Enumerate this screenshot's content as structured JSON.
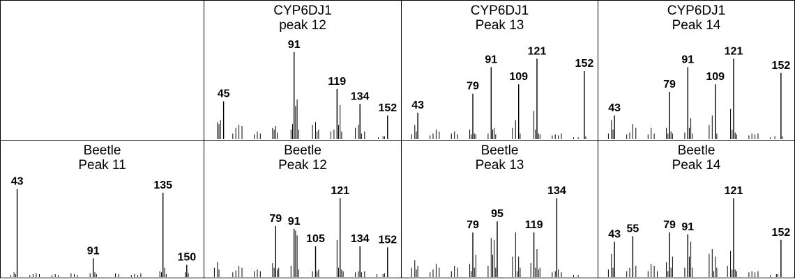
{
  "chart_data": [
    {
      "type": "bar",
      "title_line1": "CYP6DJ1",
      "title_line2": "peak 12",
      "series_color": "#000000",
      "labeled_peaks": [
        {
          "x": 45,
          "y": 0.4
        },
        {
          "x": 91,
          "y": 0.92
        },
        {
          "x": 119,
          "y": 0.53
        },
        {
          "x": 134,
          "y": 0.37
        },
        {
          "x": 152,
          "y": 0.25
        }
      ],
      "minor_peaks": [
        [
          41,
          0.18
        ],
        [
          42,
          0.16
        ],
        [
          43,
          0.2
        ],
        [
          51,
          0.06
        ],
        [
          53,
          0.12
        ],
        [
          55,
          0.15
        ],
        [
          57,
          0.14
        ],
        [
          65,
          0.05
        ],
        [
          67,
          0.08
        ],
        [
          69,
          0.06
        ],
        [
          77,
          0.12
        ],
        [
          78,
          0.1
        ],
        [
          79,
          0.14
        ],
        [
          80,
          0.07
        ],
        [
          89,
          0.1
        ],
        [
          90,
          0.16
        ],
        [
          92,
          0.35
        ],
        [
          93,
          0.42
        ],
        [
          94,
          0.1
        ],
        [
          103,
          0.15
        ],
        [
          105,
          0.18
        ],
        [
          106,
          0.08
        ],
        [
          107,
          0.1
        ],
        [
          115,
          0.08
        ],
        [
          117,
          0.1
        ],
        [
          120,
          0.15
        ],
        [
          121,
          0.36
        ],
        [
          122,
          0.08
        ],
        [
          131,
          0.12
        ],
        [
          133,
          0.15
        ],
        [
          135,
          0.06
        ],
        [
          137,
          0.08
        ],
        [
          146,
          0.02
        ],
        [
          149,
          0.03
        ],
        [
          150,
          0.03
        ]
      ]
    },
    {
      "type": "bar",
      "title_line1": "CYP6DJ1",
      "title_line2": "Peak 13",
      "series_color": "#000000",
      "labeled_peaks": [
        {
          "x": 43,
          "y": 0.28
        },
        {
          "x": 79,
          "y": 0.48
        },
        {
          "x": 91,
          "y": 0.76
        },
        {
          "x": 109,
          "y": 0.58
        },
        {
          "x": 121,
          "y": 0.85
        },
        {
          "x": 152,
          "y": 0.72
        }
      ],
      "minor_peaks": [
        [
          39,
          0.05
        ],
        [
          41,
          0.15
        ],
        [
          42,
          0.08
        ],
        [
          51,
          0.04
        ],
        [
          53,
          0.06
        ],
        [
          55,
          0.1
        ],
        [
          57,
          0.08
        ],
        [
          65,
          0.06
        ],
        [
          67,
          0.08
        ],
        [
          69,
          0.05
        ],
        [
          77,
          0.1
        ],
        [
          78,
          0.05
        ],
        [
          80,
          0.06
        ],
        [
          81,
          0.05
        ],
        [
          89,
          0.06
        ],
        [
          92,
          0.1
        ],
        [
          93,
          0.12
        ],
        [
          94,
          0.05
        ],
        [
          105,
          0.12
        ],
        [
          107,
          0.2
        ],
        [
          110,
          0.06
        ],
        [
          119,
          0.3
        ],
        [
          120,
          0.1
        ],
        [
          122,
          0.06
        ],
        [
          123,
          0.05
        ],
        [
          131,
          0.04
        ],
        [
          133,
          0.05
        ],
        [
          135,
          0.04
        ],
        [
          137,
          0.06
        ],
        [
          145,
          0.02
        ],
        [
          148,
          0.02
        ],
        [
          153,
          0.03
        ]
      ]
    },
    {
      "type": "bar",
      "title_line1": "CYP6DJ1",
      "title_line2": "Peak 14",
      "series_color": "#000000",
      "labeled_peaks": [
        {
          "x": 43,
          "y": 0.25
        },
        {
          "x": 79,
          "y": 0.5
        },
        {
          "x": 91,
          "y": 0.76
        },
        {
          "x": 109,
          "y": 0.58
        },
        {
          "x": 121,
          "y": 0.85
        },
        {
          "x": 152,
          "y": 0.7
        }
      ],
      "minor_peaks": [
        [
          39,
          0.06
        ],
        [
          41,
          0.2
        ],
        [
          42,
          0.1
        ],
        [
          51,
          0.05
        ],
        [
          53,
          0.07
        ],
        [
          55,
          0.16
        ],
        [
          57,
          0.12
        ],
        [
          65,
          0.05
        ],
        [
          67,
          0.12
        ],
        [
          69,
          0.06
        ],
        [
          77,
          0.12
        ],
        [
          78,
          0.06
        ],
        [
          80,
          0.08
        ],
        [
          81,
          0.06
        ],
        [
          89,
          0.07
        ],
        [
          92,
          0.12
        ],
        [
          93,
          0.22
        ],
        [
          94,
          0.06
        ],
        [
          105,
          0.15
        ],
        [
          107,
          0.25
        ],
        [
          110,
          0.06
        ],
        [
          119,
          0.32
        ],
        [
          120,
          0.1
        ],
        [
          122,
          0.07
        ],
        [
          123,
          0.05
        ],
        [
          131,
          0.04
        ],
        [
          133,
          0.06
        ],
        [
          135,
          0.05
        ],
        [
          137,
          0.06
        ],
        [
          145,
          0.02
        ],
        [
          148,
          0.03
        ],
        [
          153,
          0.03
        ]
      ]
    },
    {
      "type": "bar",
      "title_line1": "Beetle",
      "title_line2": "Peak 11",
      "series_color": "#000000",
      "labeled_peaks": [
        {
          "x": 43,
          "y": 0.95
        },
        {
          "x": 91,
          "y": 0.2
        },
        {
          "x": 135,
          "y": 0.91
        },
        {
          "x": 150,
          "y": 0.13
        }
      ],
      "minor_peaks": [
        [
          39,
          0.02
        ],
        [
          41,
          0.05
        ],
        [
          42,
          0.03
        ],
        [
          51,
          0.02
        ],
        [
          53,
          0.03
        ],
        [
          55,
          0.04
        ],
        [
          57,
          0.03
        ],
        [
          65,
          0.02
        ],
        [
          67,
          0.03
        ],
        [
          69,
          0.02
        ],
        [
          77,
          0.04
        ],
        [
          79,
          0.03
        ],
        [
          81,
          0.02
        ],
        [
          89,
          0.04
        ],
        [
          92,
          0.05
        ],
        [
          93,
          0.03
        ],
        [
          105,
          0.04
        ],
        [
          107,
          0.03
        ],
        [
          115,
          0.02
        ],
        [
          117,
          0.03
        ],
        [
          119,
          0.02
        ],
        [
          121,
          0.04
        ],
        [
          133,
          0.06
        ],
        [
          134,
          0.05
        ],
        [
          136,
          0.1
        ],
        [
          137,
          0.03
        ],
        [
          149,
          0.05
        ],
        [
          151,
          0.04
        ]
      ]
    },
    {
      "type": "bar",
      "title_line1": "Beetle",
      "title_line2": "Peak 12",
      "series_color": "#000000",
      "labeled_peaks": [
        {
          "x": 79,
          "y": 0.55
        },
        {
          "x": 91,
          "y": 0.52
        },
        {
          "x": 105,
          "y": 0.33
        },
        {
          "x": 121,
          "y": 0.85
        },
        {
          "x": 134,
          "y": 0.33
        },
        {
          "x": 152,
          "y": 0.32
        }
      ],
      "minor_peaks": [
        [
          39,
          0.1
        ],
        [
          41,
          0.16
        ],
        [
          42,
          0.08
        ],
        [
          51,
          0.05
        ],
        [
          53,
          0.07
        ],
        [
          55,
          0.12
        ],
        [
          57,
          0.1
        ],
        [
          65,
          0.06
        ],
        [
          67,
          0.08
        ],
        [
          69,
          0.06
        ],
        [
          77,
          0.15
        ],
        [
          78,
          0.1
        ],
        [
          80,
          0.08
        ],
        [
          81,
          0.1
        ],
        [
          89,
          0.12
        ],
        [
          92,
          0.5
        ],
        [
          93,
          0.45
        ],
        [
          94,
          0.08
        ],
        [
          103,
          0.06
        ],
        [
          106,
          0.06
        ],
        [
          107,
          0.08
        ],
        [
          119,
          0.4
        ],
        [
          120,
          0.1
        ],
        [
          122,
          0.08
        ],
        [
          123,
          0.06
        ],
        [
          131,
          0.05
        ],
        [
          133,
          0.06
        ],
        [
          135,
          0.05
        ],
        [
          137,
          0.06
        ],
        [
          145,
          0.03
        ],
        [
          149,
          0.03
        ],
        [
          150,
          0.04
        ]
      ]
    },
    {
      "type": "bar",
      "title_line1": "Beetle",
      "title_line2": "Peak 13",
      "series_color": "#000000",
      "labeled_peaks": [
        {
          "x": 79,
          "y": 0.48
        },
        {
          "x": 95,
          "y": 0.6
        },
        {
          "x": 119,
          "y": 0.48
        },
        {
          "x": 134,
          "y": 0.85
        }
      ],
      "minor_peaks": [
        [
          39,
          0.1
        ],
        [
          41,
          0.18
        ],
        [
          42,
          0.08
        ],
        [
          43,
          0.12
        ],
        [
          51,
          0.05
        ],
        [
          53,
          0.08
        ],
        [
          55,
          0.14
        ],
        [
          57,
          0.1
        ],
        [
          65,
          0.06
        ],
        [
          67,
          0.12
        ],
        [
          69,
          0.1
        ],
        [
          77,
          0.14
        ],
        [
          78,
          0.06
        ],
        [
          80,
          0.1
        ],
        [
          81,
          0.24
        ],
        [
          89,
          0.12
        ],
        [
          91,
          0.42
        ],
        [
          92,
          0.24
        ],
        [
          93,
          0.4
        ],
        [
          94,
          0.1
        ],
        [
          105,
          0.22
        ],
        [
          107,
          0.48
        ],
        [
          108,
          0.06
        ],
        [
          109,
          0.22
        ],
        [
          110,
          0.1
        ],
        [
          117,
          0.15
        ],
        [
          120,
          0.1
        ],
        [
          121,
          0.3
        ],
        [
          122,
          0.08
        ],
        [
          123,
          0.1
        ],
        [
          131,
          0.05
        ],
        [
          133,
          0.06
        ],
        [
          135,
          0.08
        ],
        [
          137,
          0.05
        ],
        [
          145,
          0.02
        ],
        [
          148,
          0.02
        ]
      ]
    },
    {
      "type": "bar",
      "title_line1": "Beetle",
      "title_line2": "Peak 14",
      "series_color": "#000000",
      "labeled_peaks": [
        {
          "x": 43,
          "y": 0.38
        },
        {
          "x": 55,
          "y": 0.44
        },
        {
          "x": 79,
          "y": 0.48
        },
        {
          "x": 91,
          "y": 0.46
        },
        {
          "x": 121,
          "y": 0.85
        },
        {
          "x": 152,
          "y": 0.4
        }
      ],
      "minor_peaks": [
        [
          39,
          0.08
        ],
        [
          41,
          0.25
        ],
        [
          42,
          0.1
        ],
        [
          51,
          0.06
        ],
        [
          53,
          0.1
        ],
        [
          57,
          0.12
        ],
        [
          65,
          0.06
        ],
        [
          67,
          0.14
        ],
        [
          69,
          0.12
        ],
        [
          71,
          0.06
        ],
        [
          77,
          0.16
        ],
        [
          78,
          0.06
        ],
        [
          80,
          0.1
        ],
        [
          81,
          0.22
        ],
        [
          89,
          0.1
        ],
        [
          92,
          0.22
        ],
        [
          93,
          0.38
        ],
        [
          94,
          0.1
        ],
        [
          105,
          0.25
        ],
        [
          107,
          0.3
        ],
        [
          108,
          0.06
        ],
        [
          109,
          0.22
        ],
        [
          110,
          0.1
        ],
        [
          117,
          0.12
        ],
        [
          119,
          0.28
        ],
        [
          120,
          0.08
        ],
        [
          122,
          0.08
        ],
        [
          123,
          0.06
        ],
        [
          131,
          0.05
        ],
        [
          133,
          0.06
        ],
        [
          135,
          0.05
        ],
        [
          137,
          0.06
        ],
        [
          145,
          0.02
        ],
        [
          149,
          0.03
        ],
        [
          150,
          0.03
        ]
      ]
    }
  ]
}
